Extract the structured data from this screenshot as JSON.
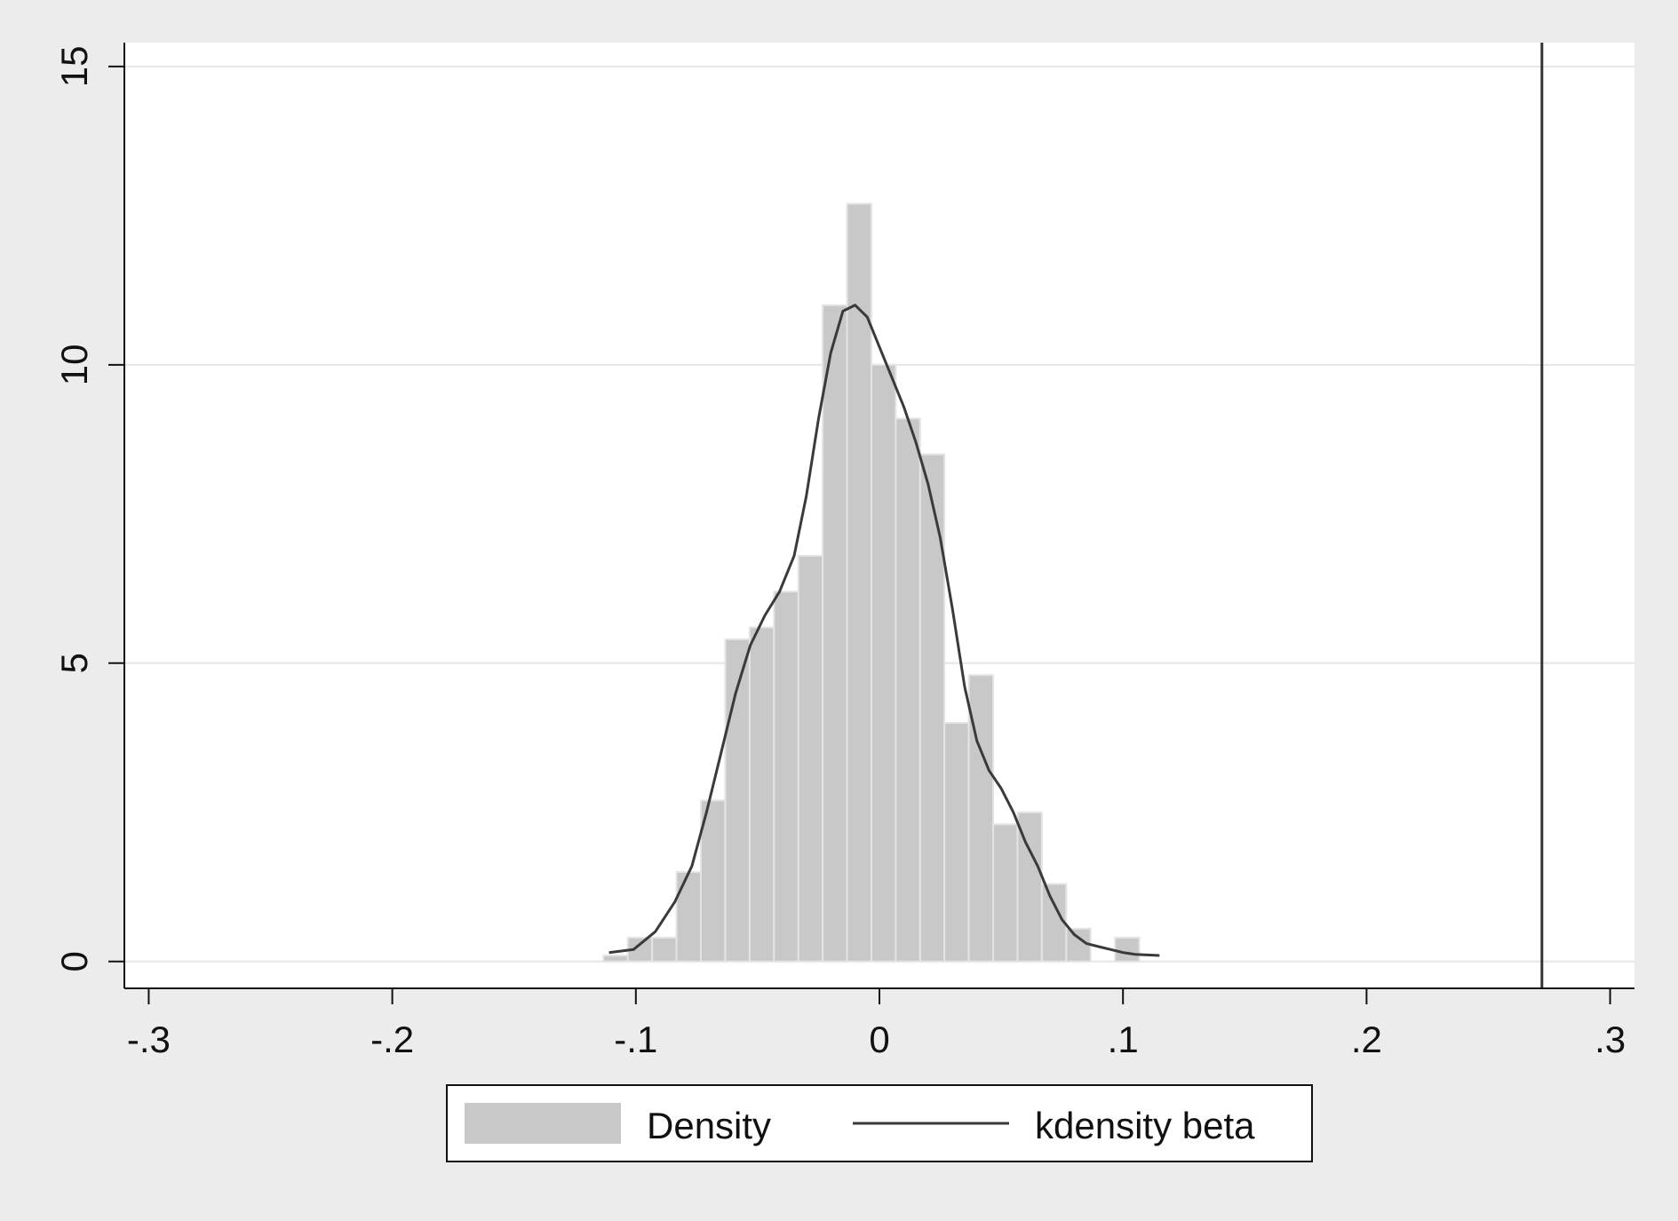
{
  "chart_data": {
    "type": "bar",
    "title": "",
    "xlabel": "",
    "ylabel": "",
    "xlim": [
      -0.31,
      0.31
    ],
    "ylim": [
      -0.45,
      15.4
    ],
    "x_ticks": [
      {
        "value": -0.3,
        "label": "-.3"
      },
      {
        "value": -0.2,
        "label": "-.2"
      },
      {
        "value": -0.1,
        "label": "-.1"
      },
      {
        "value": 0,
        "label": "0"
      },
      {
        "value": 0.1,
        "label": ".1"
      },
      {
        "value": 0.2,
        "label": ".2"
      },
      {
        "value": 0.3,
        "label": ".3"
      }
    ],
    "y_ticks": [
      {
        "value": 0,
        "label": "0"
      },
      {
        "value": 5,
        "label": "5"
      },
      {
        "value": 10,
        "label": "10"
      },
      {
        "value": 15,
        "label": "15"
      }
    ],
    "grid": true,
    "histogram": {
      "name": "Density",
      "color": "#c8c8c8",
      "bins": [
        {
          "x0": -0.1133,
          "x1": -0.1033,
          "y": 0.1
        },
        {
          "x0": -0.1033,
          "x1": -0.0933,
          "y": 0.4
        },
        {
          "x0": -0.0933,
          "x1": -0.0833,
          "y": 0.4
        },
        {
          "x0": -0.0833,
          "x1": -0.0733,
          "y": 1.5
        },
        {
          "x0": -0.0733,
          "x1": -0.0633,
          "y": 2.7
        },
        {
          "x0": -0.0633,
          "x1": -0.0533,
          "y": 5.4
        },
        {
          "x0": -0.0533,
          "x1": -0.0433,
          "y": 5.6
        },
        {
          "x0": -0.0433,
          "x1": -0.0333,
          "y": 6.2
        },
        {
          "x0": -0.0333,
          "x1": -0.0233,
          "y": 6.8
        },
        {
          "x0": -0.0233,
          "x1": -0.0133,
          "y": 11.0
        },
        {
          "x0": -0.0133,
          "x1": -0.0033,
          "y": 12.7
        },
        {
          "x0": -0.0033,
          "x1": 0.0067,
          "y": 10.0
        },
        {
          "x0": 0.0067,
          "x1": 0.0167,
          "y": 9.1
        },
        {
          "x0": 0.0167,
          "x1": 0.0267,
          "y": 8.5
        },
        {
          "x0": 0.0267,
          "x1": 0.0367,
          "y": 4.0
        },
        {
          "x0": 0.0367,
          "x1": 0.0467,
          "y": 4.8
        },
        {
          "x0": 0.0467,
          "x1": 0.0567,
          "y": 2.3
        },
        {
          "x0": 0.0567,
          "x1": 0.0667,
          "y": 2.5
        },
        {
          "x0": 0.0667,
          "x1": 0.0767,
          "y": 1.3
        },
        {
          "x0": 0.0767,
          "x1": 0.0867,
          "y": 0.55
        },
        {
          "x0": 0.0867,
          "x1": 0.0967,
          "y": 0.0
        },
        {
          "x0": 0.0967,
          "x1": 0.1067,
          "y": 0.4
        }
      ]
    },
    "kdensity": {
      "name": "kdensity beta",
      "color": "#3a3a3a",
      "x": [
        -0.111,
        -0.101,
        -0.092,
        -0.084,
        -0.077,
        -0.071,
        -0.065,
        -0.059,
        -0.053,
        -0.047,
        -0.041,
        -0.035,
        -0.03,
        -0.025,
        -0.02,
        -0.015,
        -0.01,
        -0.005,
        0.0,
        0.005,
        0.01,
        0.015,
        0.02,
        0.025,
        0.03,
        0.035,
        0.04,
        0.045,
        0.05,
        0.055,
        0.06,
        0.065,
        0.07,
        0.075,
        0.08,
        0.085,
        0.09,
        0.095,
        0.1,
        0.105,
        0.115
      ],
      "y": [
        0.15,
        0.2,
        0.5,
        1.0,
        1.6,
        2.5,
        3.5,
        4.5,
        5.3,
        5.8,
        6.2,
        6.8,
        7.8,
        9.1,
        10.2,
        10.9,
        11.0,
        10.8,
        10.3,
        9.8,
        9.3,
        8.7,
        8.0,
        7.1,
        5.9,
        4.6,
        3.7,
        3.2,
        2.9,
        2.5,
        2.0,
        1.6,
        1.1,
        0.7,
        0.45,
        0.3,
        0.25,
        0.2,
        0.15,
        0.12,
        0.1
      ]
    },
    "reference_line": {
      "x": 0.272,
      "color": "#333333"
    },
    "legend": {
      "position": "bottom",
      "entries": [
        {
          "label": "Density",
          "kind": "bar",
          "color": "#c8c8c8"
        },
        {
          "label": "kdensity beta",
          "kind": "line",
          "color": "#3a3a3a"
        }
      ]
    }
  }
}
